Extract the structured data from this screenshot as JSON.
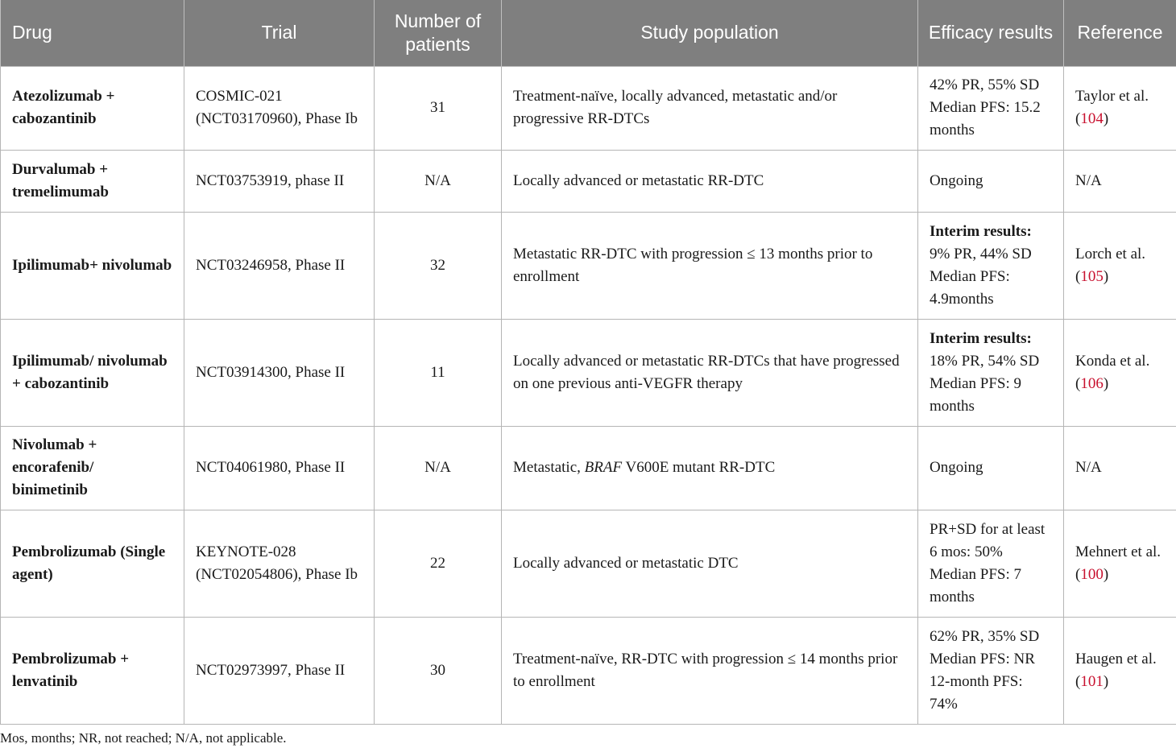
{
  "table": {
    "headers": {
      "drug": "Drug",
      "trial": "Trial",
      "number": "Number of patients",
      "population": "Study population",
      "efficacy": "Efficacy results",
      "reference": "Reference"
    },
    "rows": [
      {
        "drug": "Atezolizumab + cabozantinib",
        "trial": "COSMIC-021 (NCT03170960), Phase Ib",
        "number": "31",
        "population": "Treatment-naïve, locally advanced, metastatic and/or progressive RR-DTCs",
        "efficacy_label": "",
        "efficacy": [
          "42% PR, 55% SD",
          "Median PFS: 15.2 months"
        ],
        "ref_text": "Taylor et al. (",
        "ref_num": "104",
        "ref_close": ")"
      },
      {
        "drug": "Durvalumab + tremelimumab",
        "trial": "NCT03753919, phase II",
        "number": "N/A",
        "population": "Locally advanced or metastatic RR-DTC",
        "efficacy_label": "",
        "efficacy": [
          "Ongoing"
        ],
        "ref_text": "N/A",
        "ref_num": "",
        "ref_close": ""
      },
      {
        "drug": "Ipilimumab+ nivolumab",
        "trial": "NCT03246958, Phase II",
        "number": "32",
        "population": "Metastatic RR-DTC with progression ≤ 13 months prior to enrollment",
        "efficacy_label": "Interim results:",
        "efficacy": [
          "9% PR, 44% SD",
          "Median PFS: 4.9months"
        ],
        "ref_text": "Lorch et al. (",
        "ref_num": "105",
        "ref_close": ")"
      },
      {
        "drug": "Ipilimumab/ nivolumab + cabozantinib",
        "trial": "NCT03914300, Phase II",
        "number": "11",
        "population": "Locally advanced or metastatic RR-DTCs that have progressed on one previous anti-VEGFR therapy",
        "efficacy_label": "Interim results:",
        "efficacy": [
          "18% PR, 54% SD",
          "Median PFS: 9 months"
        ],
        "ref_text": "Konda et al. (",
        "ref_num": "106",
        "ref_close": ")"
      },
      {
        "drug": "Nivolumab + encorafenib/ binimetinib",
        "trial": "NCT04061980, Phase II",
        "number": "N/A",
        "population_pre": "Metastatic, ",
        "population_italic": "BRAF",
        "population_post": " V600E mutant RR-DTC",
        "efficacy_label": "",
        "efficacy": [
          "Ongoing"
        ],
        "ref_text": "N/A",
        "ref_num": "",
        "ref_close": ""
      },
      {
        "drug": "Pembrolizumab (Single agent)",
        "trial": "KEYNOTE-028 (NCT02054806), Phase Ib",
        "number": "22",
        "population": "Locally advanced or metastatic DTC",
        "efficacy_label": "",
        "efficacy": [
          "PR+SD for at least 6 mos: 50%",
          "Median PFS: 7 months"
        ],
        "ref_text": "Mehnert et al. (",
        "ref_num": "100",
        "ref_close": ")"
      },
      {
        "drug": "Pembrolizumab + lenvatinib",
        "trial": "NCT02973997, Phase II",
        "number": "30",
        "population": "Treatment-naïve, RR-DTC with progression ≤ 14 months prior to enrollment",
        "efficacy_label": "",
        "efficacy": [
          "62% PR, 35% SD",
          "Median PFS: NR",
          "12-month PFS: 74%"
        ],
        "ref_text": "Haugen et al. (",
        "ref_num": "101",
        "ref_close": ")"
      }
    ]
  },
  "footnote": "Mos, months; NR, not reached; N/A, not applicable."
}
